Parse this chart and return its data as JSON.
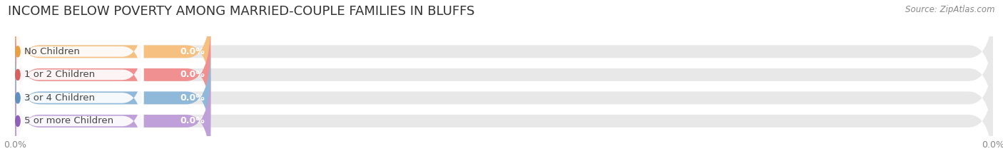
{
  "title": "INCOME BELOW POVERTY AMONG MARRIED-COUPLE FAMILIES IN BLUFFS",
  "source": "Source: ZipAtlas.com",
  "categories": [
    "No Children",
    "1 or 2 Children",
    "3 or 4 Children",
    "5 or more Children"
  ],
  "values": [
    0.0,
    0.0,
    0.0,
    0.0
  ],
  "bar_colors": [
    "#f5c080",
    "#f09090",
    "#90b8d8",
    "#c0a0d8"
  ],
  "bar_bg_color": "#e8e8e8",
  "label_dot_colors": [
    "#e8a040",
    "#d86060",
    "#6090c0",
    "#9060b8"
  ],
  "bar_height": 0.55,
  "xlim": [
    0,
    100
  ],
  "background_color": "#ffffff",
  "title_fontsize": 13,
  "source_fontsize": 8.5,
  "label_fontsize": 9.5,
  "value_fontsize": 9,
  "colored_bar_width": 20.0,
  "xtick_positions": [
    0,
    100
  ],
  "xtick_labels": [
    "0.0%",
    "0.0%"
  ]
}
